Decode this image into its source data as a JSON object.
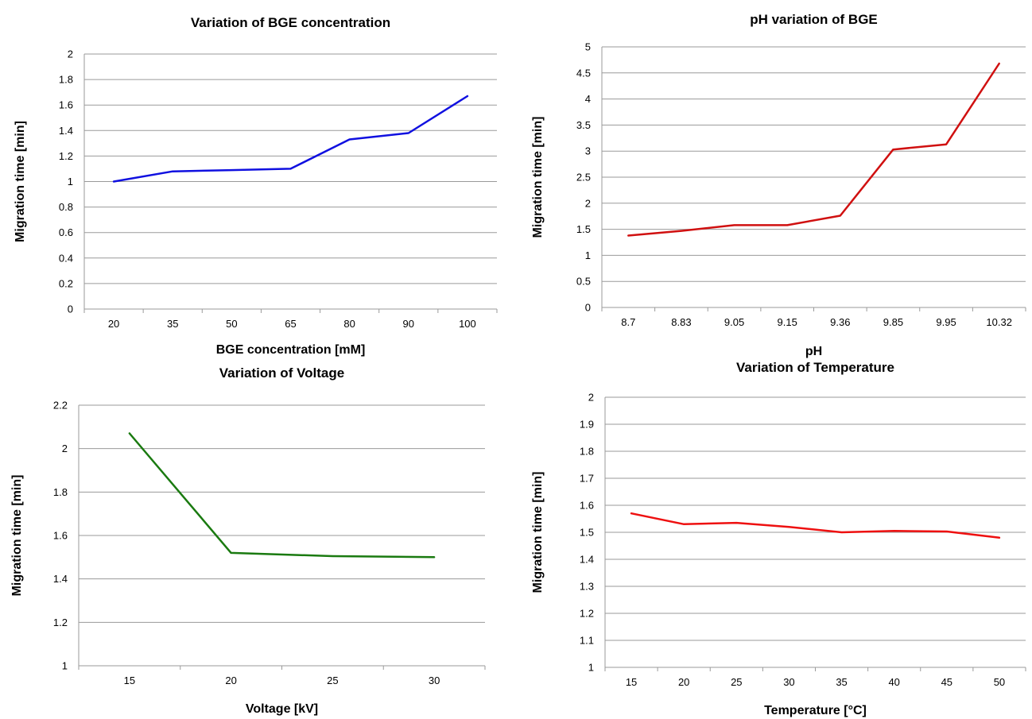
{
  "chart_data": [
    {
      "type": "line",
      "title": "Variation of BGE concentration",
      "xlabel": "BGE concentration [mM]",
      "ylabel": "Migration time [min]",
      "categories": [
        "20",
        "35",
        "50",
        "65",
        "80",
        "90",
        "100"
      ],
      "series": [
        {
          "values": [
            1.0,
            1.08,
            1.09,
            1.1,
            1.33,
            1.38,
            1.67
          ],
          "color": "#1010e0"
        }
      ],
      "ylim": [
        0,
        2
      ],
      "yticks": [
        "0",
        "0.2",
        "0.4",
        "0.6",
        "0.8",
        "1",
        "1.2",
        "1.4",
        "1.6",
        "1.8",
        "2"
      ],
      "grid": true
    },
    {
      "type": "line",
      "title": "pH variation of BGE",
      "xlabel": "pH",
      "ylabel": "Migration time [min]",
      "categories": [
        "8.7",
        "8.83",
        "9.05",
        "9.15",
        "9.36",
        "9.85",
        "9.95",
        "10.32"
      ],
      "series": [
        {
          "values": [
            1.38,
            1.47,
            1.58,
            1.58,
            1.76,
            3.03,
            3.13,
            4.68
          ],
          "color": "#d01010"
        }
      ],
      "ylim": [
        0,
        5
      ],
      "yticks": [
        "0",
        "0.5",
        "1",
        "1.5",
        "2",
        "2.5",
        "3",
        "3.5",
        "4",
        "4.5",
        "5"
      ],
      "grid": true
    },
    {
      "type": "line",
      "title": "Variation of Voltage",
      "xlabel": "Voltage [kV]",
      "ylabel": "Migration time [min]",
      "categories": [
        "15",
        "20",
        "25",
        "30"
      ],
      "series": [
        {
          "values": [
            2.07,
            1.52,
            1.505,
            1.5
          ],
          "color": "#1a7a10"
        }
      ],
      "ylim": [
        1,
        2.2
      ],
      "yticks": [
        "1",
        "1.2",
        "1.4",
        "1.6",
        "1.8",
        "2",
        "2.2"
      ],
      "grid": true
    },
    {
      "type": "line",
      "title": "Variation of Temperature",
      "xlabel": "Temperature [°C]",
      "ylabel": "Migration time [min]",
      "categories": [
        "15",
        "20",
        "25",
        "30",
        "35",
        "40",
        "45",
        "50"
      ],
      "series": [
        {
          "values": [
            1.57,
            1.53,
            1.535,
            1.52,
            1.5,
            1.505,
            1.503,
            1.48
          ],
          "color": "#ee1010"
        }
      ],
      "ylim": [
        1,
        2
      ],
      "yticks": [
        "1",
        "1.1",
        "1.2",
        "1.3",
        "1.4",
        "1.5",
        "1.6",
        "1.7",
        "1.8",
        "1.9",
        "2"
      ],
      "grid": true
    }
  ]
}
